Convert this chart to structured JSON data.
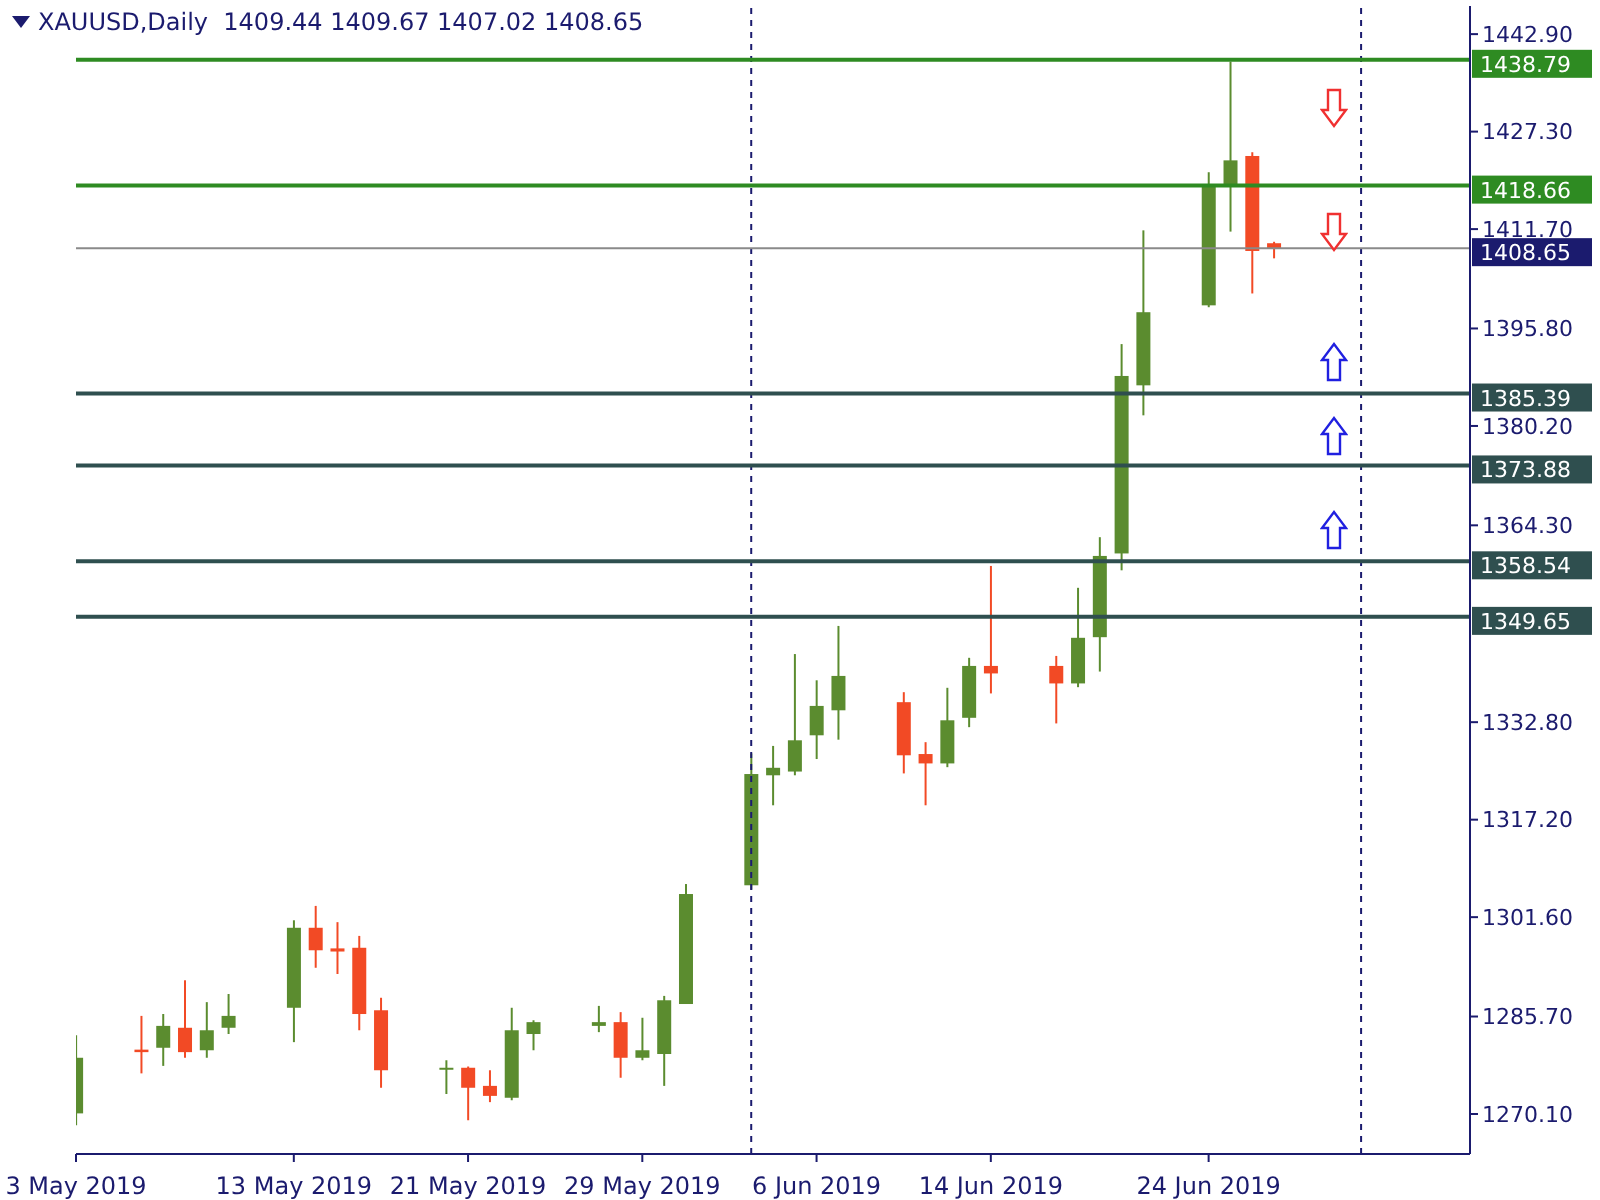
{
  "chart_data": {
    "type": "candlestick",
    "title": "XAUUSD,Daily  1409.44 1409.67 1407.02 1408.65",
    "x": [
      "2019-05-03",
      "2019-05-06",
      "2019-05-07",
      "2019-05-08",
      "2019-05-09",
      "2019-05-10",
      "2019-05-13",
      "2019-05-14",
      "2019-05-15",
      "2019-05-16",
      "2019-05-17",
      "2019-05-20",
      "2019-05-21",
      "2019-05-22",
      "2019-05-23",
      "2019-05-24",
      "2019-05-27",
      "2019-05-28",
      "2019-05-29",
      "2019-05-30",
      "2019-05-31",
      "2019-06-03",
      "2019-06-04",
      "2019-06-05",
      "2019-06-06",
      "2019-06-07",
      "2019-06-10",
      "2019-06-11",
      "2019-06-12",
      "2019-06-13",
      "2019-06-14",
      "2019-06-17",
      "2019-06-18",
      "2019-06-19",
      "2019-06-20",
      "2019-06-21",
      "2019-06-24",
      "2019-06-25",
      "2019-06-26",
      "2019-06-27"
    ],
    "ohlc": [
      [
        1270.2,
        1282.7,
        1268.3,
        1279.1
      ],
      [
        1280.4,
        1285.8,
        1276.6,
        1280.0
      ],
      [
        1280.7,
        1286.1,
        1277.8,
        1284.2
      ],
      [
        1283.9,
        1291.5,
        1279.1,
        1280.0
      ],
      [
        1280.3,
        1288.0,
        1279.1,
        1283.5
      ],
      [
        1283.9,
        1289.3,
        1282.9,
        1285.8
      ],
      [
        1287.1,
        1301.1,
        1281.6,
        1299.9
      ],
      [
        1299.9,
        1303.4,
        1293.5,
        1296.3
      ],
      [
        1296.6,
        1300.8,
        1292.5,
        1296.1
      ],
      [
        1296.7,
        1298.6,
        1283.5,
        1286.1
      ],
      [
        1286.7,
        1288.7,
        1274.3,
        1277.1
      ],
      [
        1277.3,
        1278.7,
        1273.3,
        1277.5
      ],
      [
        1277.5,
        1277.7,
        1269.1,
        1274.3
      ],
      [
        1274.6,
        1277.1,
        1272.0,
        1273.0
      ],
      [
        1272.7,
        1287.1,
        1272.3,
        1283.5
      ],
      [
        1282.9,
        1285.1,
        1280.3,
        1284.8
      ],
      [
        1284.2,
        1287.4,
        1283.2,
        1284.8
      ],
      [
        1284.8,
        1286.4,
        1275.9,
        1279.1
      ],
      [
        1279.1,
        1285.5,
        1278.7,
        1280.3
      ],
      [
        1279.7,
        1289.0,
        1274.6,
        1288.3
      ],
      [
        1287.7,
        1306.9,
        1287.7,
        1305.3
      ],
      [
        1306.7,
        1327.8,
        1306.0,
        1324.5
      ],
      [
        1324.3,
        1329.0,
        1319.5,
        1325.5
      ],
      [
        1324.9,
        1343.7,
        1324.3,
        1329.9
      ],
      [
        1330.7,
        1339.5,
        1326.9,
        1335.4
      ],
      [
        1334.7,
        1348.2,
        1330.0,
        1340.2
      ],
      [
        1336.0,
        1337.6,
        1324.6,
        1327.5
      ],
      [
        1327.7,
        1329.6,
        1319.5,
        1326.2
      ],
      [
        1326.2,
        1338.3,
        1325.6,
        1333.1
      ],
      [
        1333.5,
        1343.1,
        1332.0,
        1341.8
      ],
      [
        1341.8,
        1357.8,
        1337.4,
        1340.6
      ],
      [
        1341.8,
        1343.4,
        1332.6,
        1339.0
      ],
      [
        1339.0,
        1354.3,
        1338.4,
        1346.3
      ],
      [
        1346.4,
        1362.4,
        1340.9,
        1359.4
      ],
      [
        1359.8,
        1393.3,
        1357.1,
        1388.2
      ],
      [
        1386.7,
        1411.5,
        1381.9,
        1398.4
      ],
      [
        1399.5,
        1420.8,
        1399.2,
        1418.6
      ],
      [
        1418.6,
        1438.5,
        1411.3,
        1422.7
      ],
      [
        1423.4,
        1424.0,
        1401.4,
        1408.2
      ],
      [
        1409.44,
        1409.67,
        1407.02,
        1408.65
      ]
    ],
    "colors": [
      "#5b8c2f",
      "#f24a25",
      "#5b8c2f",
      "#f24a25",
      "#5b8c2f",
      "#5b8c2f",
      "#5b8c2f",
      "#f24a25",
      "#f24a25",
      "#f24a25",
      "#f24a25",
      "#5b8c2f",
      "#f24a25",
      "#f24a25",
      "#5b8c2f",
      "#5b8c2f",
      "#5b8c2f",
      "#f24a25",
      "#5b8c2f",
      "#5b8c2f",
      "#5b8c2f",
      "#5b8c2f",
      "#5b8c2f",
      "#5b8c2f",
      "#5b8c2f",
      "#5b8c2f",
      "#f24a25",
      "#f24a25",
      "#5b8c2f",
      "#5b8c2f",
      "#f24a25",
      "#f24a25",
      "#5b8c2f",
      "#5b8c2f",
      "#5b8c2f",
      "#5b8c2f",
      "#5b8c2f",
      "#5b8c2f",
      "#f24a25",
      "#f24a25"
    ],
    "xlim": [
      "2019-05-03",
      "2019-07-06"
    ],
    "xticks": [
      {
        "value": "2019-05-03",
        "label": "3 May 2019"
      },
      {
        "value": "2019-05-13",
        "label": "13 May 2019"
      },
      {
        "value": "2019-05-21",
        "label": "21 May 2019"
      },
      {
        "value": "2019-05-29",
        "label": "29 May 2019"
      },
      {
        "value": "2019-06-06",
        "label": "6 Jun 2019"
      },
      {
        "value": "2019-06-14",
        "label": "14 Jun 2019"
      },
      {
        "value": "2019-06-24",
        "label": "24 Jun 2019"
      }
    ],
    "ylim": [
      1263.7,
      1447.4
    ],
    "yticks": [
      {
        "value": 1442.9,
        "label": "1442.90"
      },
      {
        "value": 1427.3,
        "label": "1427.30"
      },
      {
        "value": 1411.7,
        "label": "1411.70"
      },
      {
        "value": 1395.8,
        "label": "1395.80"
      },
      {
        "value": 1380.2,
        "label": "1380.20"
      },
      {
        "value": 1364.3,
        "label": "1364.30"
      },
      {
        "value": 1332.8,
        "label": "1332.80"
      },
      {
        "value": 1317.2,
        "label": "1317.20"
      },
      {
        "value": 1301.6,
        "label": "1301.60"
      },
      {
        "value": 1285.7,
        "label": "1285.70"
      },
      {
        "value": 1270.1,
        "label": "1270.10"
      }
    ],
    "ref_lines": [
      {
        "axis": "y",
        "value": 1438.79,
        "label": "1438.79",
        "color": "#2e8b22"
      },
      {
        "axis": "y",
        "value": 1418.66,
        "label": "1418.66",
        "color": "#2e8b22"
      },
      {
        "axis": "y",
        "value": 1408.65,
        "label": "1408.65",
        "color": "#8a8a8a"
      },
      {
        "axis": "y",
        "value": 1385.39,
        "label": "1385.39",
        "color": "#2f4f4f"
      },
      {
        "axis": "y",
        "value": 1373.88,
        "label": "1373.88",
        "color": "#2f4f4f"
      },
      {
        "axis": "y",
        "value": 1358.54,
        "label": "1358.54",
        "color": "#2f4f4f"
      },
      {
        "axis": "y",
        "value": 1349.65,
        "label": "1349.65",
        "color": "#2f4f4f"
      },
      {
        "axis": "x",
        "value": "2019-06-03",
        "color": "#1b1b6e",
        "line_style": "dashed"
      },
      {
        "axis": "x",
        "value": "2019-07-01",
        "color": "#1b1b6e",
        "line_style": "dashed"
      }
    ]
  }
}
